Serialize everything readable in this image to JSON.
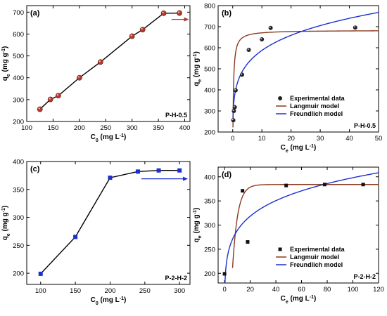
{
  "chart_data": [
    {
      "id": "a",
      "type": "line",
      "tag": "(a)",
      "inner_label": "P-H-0.5",
      "xlabel": "C",
      "xlabel_sub": "0",
      "xlabel_unit": " (mg L",
      "xlabel_sup": "-1",
      "xlabel_end": ")",
      "ylabel": "q",
      "ylabel_sub": "e",
      "ylabel_unit": " (mg g",
      "ylabel_sup": "-1",
      "ylabel_end": ")",
      "xlim": [
        100,
        410
      ],
      "ylim": [
        200,
        730
      ],
      "xticks": [
        100,
        150,
        200,
        250,
        300,
        350,
        400
      ],
      "yticks": [
        200,
        300,
        400,
        500,
        600,
        700
      ],
      "series": [
        {
          "marker": "circle",
          "color": "#b03a2e",
          "points": [
            [
              125,
              256
            ],
            [
              145,
              301
            ],
            [
              160,
              318
            ],
            [
              200,
              400
            ],
            [
              240,
              472
            ],
            [
              300,
              590
            ],
            [
              320,
              620
            ],
            [
              360,
              695
            ],
            [
              390,
              696
            ]
          ]
        }
      ],
      "arrow": {
        "from": [
          375,
          667
        ],
        "to": [
          408,
          667
        ],
        "color": "#b03a2e"
      }
    },
    {
      "id": "b",
      "type": "scatter",
      "tag": "(b)",
      "inner_label": "P-H-0.5",
      "xlabel": "C",
      "xlabel_sub": "e",
      "xlabel_unit": " (mg L",
      "xlabel_sup": "-1",
      "xlabel_end": ")",
      "ylabel": "q",
      "ylabel_sub": "e",
      "ylabel_unit": " (mg g",
      "ylabel_sup": "-1",
      "ylabel_end": ")",
      "xlim": [
        -5,
        50
      ],
      "ylim": [
        200,
        800
      ],
      "xticks": [
        0,
        10,
        20,
        30,
        40,
        50
      ],
      "yticks": [
        200,
        300,
        400,
        500,
        600,
        700,
        800
      ],
      "experimental": {
        "marker": "sphere",
        "points": [
          [
            0.2,
            256
          ],
          [
            0.4,
            300
          ],
          [
            0.7,
            318
          ],
          [
            1.0,
            398
          ],
          [
            3.2,
            472
          ],
          [
            5.5,
            590
          ],
          [
            10,
            640
          ],
          [
            13,
            694
          ],
          [
            42,
            696
          ]
        ]
      },
      "langmuir": {
        "qm": 683,
        "KL": 5.5,
        "color": "#8b3a1e"
      },
      "freundlich": {
        "KF": 400,
        "n": 6,
        "color": "#1a2fd1"
      },
      "legend": [
        "Experimental data",
        "Langmuir model",
        "Freundlich model"
      ]
    },
    {
      "id": "c",
      "type": "line",
      "tag": "(c)",
      "inner_label": "P-2-H-2",
      "xlabel": "C",
      "xlabel_sub": "0",
      "xlabel_unit": " (mg L",
      "xlabel_sup": "-1",
      "xlabel_end": ")",
      "ylabel": "q",
      "ylabel_sub": "e",
      "ylabel_unit": " (mg g",
      "ylabel_sup": "-1",
      "ylabel_end": ")",
      "xlim": [
        80,
        315
      ],
      "ylim": [
        180,
        400
      ],
      "xticks": [
        100,
        150,
        200,
        250,
        300
      ],
      "yticks": [
        200,
        250,
        300,
        350,
        400
      ],
      "series": [
        {
          "marker": "square",
          "color": "#1a2fd1",
          "points": [
            [
              100,
              199
            ],
            [
              150,
              265
            ],
            [
              200,
              371
            ],
            [
              240,
              382
            ],
            [
              270,
              384
            ],
            [
              300,
              384
            ]
          ]
        }
      ],
      "arrow": {
        "from": [
          245,
          369
        ],
        "to": [
          312,
          369
        ],
        "color": "#1a2fd1"
      }
    },
    {
      "id": "d",
      "type": "scatter",
      "tag": "(d)",
      "inner_label": "P-2-H-2",
      "xlabel": "C",
      "xlabel_sub": "e",
      "xlabel_unit": " (mg L",
      "xlabel_sup": "-1",
      "xlabel_end": ")",
      "ylabel": "q",
      "ylabel_sub": "e",
      "ylabel_unit": " (mg g",
      "ylabel_sup": "-1",
      "ylabel_end": ")",
      "xlim": [
        -5,
        120
      ],
      "ylim": [
        180,
        420
      ],
      "xticks": [
        0,
        20,
        40,
        60,
        80,
        100,
        120
      ],
      "yticks": [
        200,
        250,
        300,
        350,
        400
      ],
      "experimental": {
        "marker": "square",
        "points": [
          [
            0,
            199
          ],
          [
            14,
            371
          ],
          [
            18,
            265
          ],
          [
            48,
            382
          ],
          [
            78,
            384
          ],
          [
            108,
            384
          ]
        ]
      },
      "langmuir": {
        "qm": 384,
        "x0": 6,
        "k": 0.25,
        "color": "#8b3a1e"
      },
      "freundlich": {
        "KF": 210,
        "n": 7.2,
        "color": "#1a2fd1"
      },
      "legend": [
        "Experimental data",
        "Langmuir model",
        "Freundlich model"
      ]
    }
  ]
}
